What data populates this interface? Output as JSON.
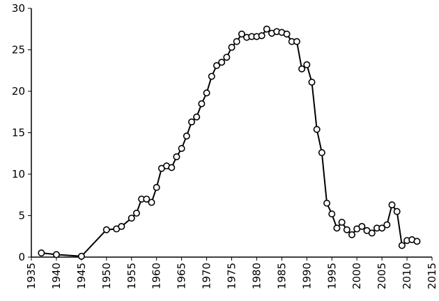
{
  "chart_data": {
    "type": "line",
    "x": [
      1937,
      1940,
      1945,
      1950,
      1952,
      1953,
      1955,
      1956,
      1957,
      1958,
      1959,
      1960,
      1961,
      1962,
      1963,
      1964,
      1965,
      1966,
      1967,
      1968,
      1969,
      1970,
      1971,
      1972,
      1973,
      1974,
      1975,
      1976,
      1977,
      1978,
      1979,
      1980,
      1981,
      1982,
      1983,
      1984,
      1985,
      1986,
      1987,
      1988,
      1989,
      1990,
      1991,
      1992,
      1993,
      1994,
      1995,
      1996,
      1997,
      1998,
      1999,
      2000,
      2001,
      2002,
      2003,
      2004,
      2005,
      2006,
      2007,
      2008,
      2009,
      2010,
      2011,
      2012
    ],
    "values": [
      0.5,
      0.3,
      0.1,
      3.3,
      3.4,
      3.7,
      4.7,
      5.3,
      7.0,
      7.0,
      6.6,
      8.4,
      10.7,
      11.0,
      10.8,
      12.1,
      13.1,
      14.6,
      16.3,
      16.9,
      18.5,
      19.8,
      21.8,
      23.1,
      23.5,
      24.1,
      25.3,
      26.0,
      26.9,
      26.5,
      26.6,
      26.6,
      26.7,
      27.5,
      27.0,
      27.2,
      27.1,
      26.9,
      26.0,
      26.0,
      22.7,
      23.2,
      21.1,
      15.4,
      12.6,
      6.5,
      5.2,
      3.5,
      4.2,
      3.3,
      2.7,
      3.4,
      3.7,
      3.2,
      2.9,
      3.5,
      3.5,
      3.9,
      6.3,
      5.5,
      1.4,
      2.0,
      2.1,
      1.9
    ],
    "color": "#000000",
    "xlim": [
      1935,
      2015
    ],
    "xticks": [
      1935,
      1940,
      1945,
      1950,
      1955,
      1960,
      1965,
      1970,
      1975,
      1980,
      1985,
      1990,
      1995,
      2000,
      2005,
      2010,
      2015
    ],
    "ylim": [
      0,
      30
    ],
    "yticks": [
      0,
      5,
      10,
      15,
      20,
      25,
      30
    ]
  }
}
